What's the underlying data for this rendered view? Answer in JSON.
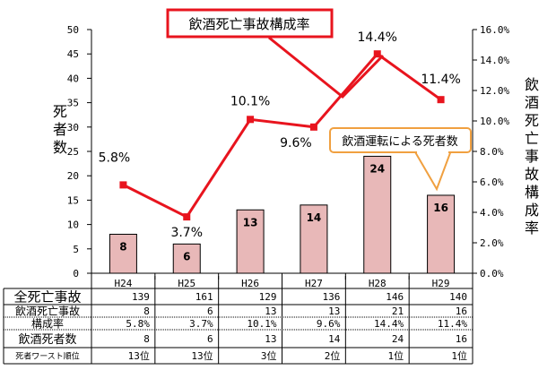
{
  "chart_data": {
    "type": "bar",
    "categories": [
      "H24",
      "H25",
      "H26",
      "H27",
      "H28",
      "H29"
    ],
    "series": [
      {
        "name": "飲酒運転による死者数",
        "kind": "bar",
        "axis": "left",
        "values": [
          8,
          6,
          13,
          14,
          24,
          16
        ],
        "color": "#e8b8b8",
        "edge": "#000000"
      },
      {
        "name": "飲酒死亡事故構成率",
        "kind": "line",
        "axis": "right",
        "values": [
          5.8,
          3.7,
          10.1,
          9.6,
          14.4,
          11.4
        ],
        "labels": [
          "5.8%",
          "3.7%",
          "10.1%",
          "9.6%",
          "14.4%",
          "11.4%"
        ],
        "color": "#e8141e"
      }
    ],
    "left_axis": {
      "label": "死者数",
      "ylim": [
        0,
        50
      ],
      "ticks": [
        "0",
        "5",
        "10",
        "15",
        "20",
        "25",
        "30",
        "35",
        "40",
        "45",
        "50"
      ]
    },
    "right_axis": {
      "label": "飲酒死亡事故構成率",
      "ylim": [
        0,
        16
      ],
      "ticks": [
        "0.0%",
        "2.0%",
        "4.0%",
        "6.0%",
        "8.0%",
        "10.0%",
        "12.0%",
        "14.0%",
        "16.0%"
      ]
    },
    "callouts": {
      "line": {
        "text": "飲酒死亡事故構成率",
        "border": "#e8141e"
      },
      "bar": {
        "text": "飲酒運転による死者数",
        "border": "#f0a040"
      }
    },
    "grid": false
  },
  "table": {
    "rows": [
      {
        "label": "全死亡事故",
        "values": [
          "139",
          "161",
          "129",
          "136",
          "146",
          "140"
        ]
      },
      {
        "label": "飲酒死亡事故",
        "values": [
          "8",
          "6",
          "13",
          "13",
          "21",
          "16"
        ]
      },
      {
        "label": "構成率",
        "values": [
          "5.8%",
          "3.7%",
          "10.1%",
          "9.6%",
          "14.4%",
          "11.4%"
        ]
      },
      {
        "label": "飲酒死者数",
        "values": [
          "8",
          "6",
          "13",
          "14",
          "24",
          "16"
        ]
      },
      {
        "label": "死者ワースト順位",
        "values": [
          "13位",
          "13位",
          "3位",
          "2位",
          "1位",
          "1位"
        ]
      }
    ]
  }
}
